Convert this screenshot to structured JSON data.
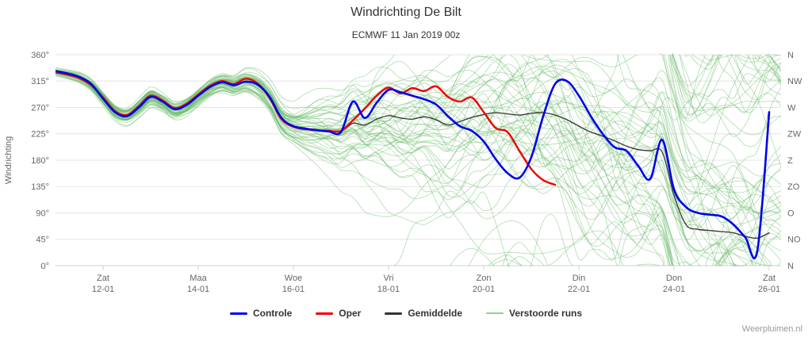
{
  "title": "Windrichting De Bilt",
  "subtitle": "ECMWF 11 Jan 2019 00z",
  "watermark": "Weerpluimen.nl",
  "axes": {
    "y_left": {
      "title": "Windrichting",
      "ticks": [
        {
          "deg": 0,
          "label": "0°"
        },
        {
          "deg": 45,
          "label": "45°"
        },
        {
          "deg": 90,
          "label": "90°"
        },
        {
          "deg": 135,
          "label": "135°"
        },
        {
          "deg": 180,
          "label": "180°"
        },
        {
          "deg": 225,
          "label": "225°"
        },
        {
          "deg": 270,
          "label": "270°"
        },
        {
          "deg": 315,
          "label": "315°"
        },
        {
          "deg": 360,
          "label": "360°"
        }
      ]
    },
    "y_right": {
      "ticks": [
        {
          "deg": 360,
          "label": "N"
        },
        {
          "deg": 315,
          "label": "NW"
        },
        {
          "deg": 270,
          "label": "W"
        },
        {
          "deg": 225,
          "label": "ZW"
        },
        {
          "deg": 180,
          "label": "Z"
        },
        {
          "deg": 135,
          "label": "ZO"
        },
        {
          "deg": 90,
          "label": "O"
        },
        {
          "deg": 45,
          "label": "NO"
        },
        {
          "deg": 0,
          "label": "N"
        }
      ]
    },
    "x": {
      "ticks": [
        {
          "weekday": "Zat",
          "date": "12-01",
          "day": 1
        },
        {
          "weekday": "Maa",
          "date": "14-01",
          "day": 3
        },
        {
          "weekday": "Woe",
          "date": "16-01",
          "day": 5
        },
        {
          "weekday": "Vri",
          "date": "18-01",
          "day": 7
        },
        {
          "weekday": "Zon",
          "date": "20-01",
          "day": 9
        },
        {
          "weekday": "Din",
          "date": "22-01",
          "day": 11
        },
        {
          "weekday": "Don",
          "date": "24-01",
          "day": 13
        },
        {
          "weekday": "Zat",
          "date": "26-01",
          "day": 15
        }
      ]
    }
  },
  "legend": {
    "items": [
      {
        "label": "Controle"
      },
      {
        "label": "Oper"
      },
      {
        "label": "Gemiddelde"
      },
      {
        "label": "Verstoorde runs"
      }
    ]
  },
  "chart_data": {
    "type": "line",
    "title": "Windrichting De Bilt",
    "subtitle": "ECMWF 11 Jan 2019 00z",
    "xlabel": "",
    "ylabel": "Windrichting",
    "ylim": [
      0,
      360
    ],
    "y_ticks_deg": [
      0,
      45,
      90,
      135,
      180,
      225,
      270,
      315,
      360
    ],
    "x_unit": "days since 2019-01-11 00z",
    "xlim": [
      0,
      15.25
    ],
    "x_step_days": 0.25,
    "x_tick_labels": [
      "Zat 12-01",
      "Maa 14-01",
      "Woe 16-01",
      "Vri 18-01",
      "Zon 20-01",
      "Din 22-01",
      "Don 24-01",
      "Zat 26-01"
    ],
    "series": [
      {
        "name": "Controle",
        "color": "#0000ee",
        "values": [
          332,
          328,
          322,
          310,
          285,
          262,
          255,
          270,
          288,
          280,
          267,
          274,
          290,
          305,
          313,
          308,
          314,
          309,
          288,
          252,
          238,
          234,
          231,
          229,
          228,
          280,
          252,
          278,
          300,
          296,
          290,
          284,
          275,
          255,
          238,
          230,
          212,
          182,
          158,
          150,
          185,
          255,
          310,
          315,
          290,
          255,
          225,
          202,
          196,
          170,
          148,
          215,
          130,
          100,
          90,
          87,
          84,
          70,
          48,
          25,
          262
        ]
      },
      {
        "name": "Oper",
        "color": "#ee0000",
        "values": [
          330,
          326,
          320,
          308,
          287,
          264,
          257,
          272,
          290,
          282,
          269,
          276,
          292,
          307,
          315,
          310,
          319,
          311,
          286,
          250,
          237,
          233,
          231,
          230,
          230,
          248,
          268,
          290,
          304,
          294,
          303,
          298,
          306,
          288,
          280,
          287,
          262,
          235,
          228,
          196,
          165,
          146,
          138
        ]
      },
      {
        "name": "Gemiddelde",
        "color": "#333333",
        "values": [
          331,
          327,
          321,
          309,
          286,
          263,
          256,
          271,
          289,
          281,
          268,
          275,
          291,
          306,
          314,
          309,
          315,
          308,
          287,
          251,
          238,
          234,
          232,
          230,
          229,
          243,
          240,
          250,
          256,
          252,
          250,
          254,
          249,
          240,
          246,
          253,
          258,
          261,
          259,
          257,
          260,
          261,
          257,
          249,
          238,
          228,
          221,
          213,
          204,
          198,
          196,
          194,
          120,
          70,
          62,
          60,
          58,
          56,
          50,
          47,
          56
        ]
      }
    ],
    "ensemble": {
      "name": "Verstoorde runs",
      "color": "#64b964",
      "count": 50,
      "opacity": 0.45,
      "width": 0.9,
      "seed": 1337,
      "sigma_by_day": [
        3,
        6,
        9,
        10,
        12,
        15,
        35,
        60,
        75,
        88,
        96,
        102,
        106,
        110,
        110,
        110
      ]
    }
  }
}
